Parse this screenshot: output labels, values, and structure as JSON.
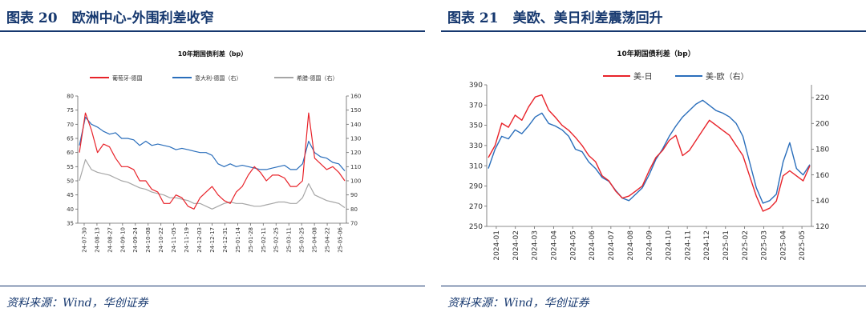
{
  "figures": [
    {
      "title_label": "图表 20",
      "title_text": "欧洲中心-外围利差收窄",
      "source": "资料来源：Wind，华创证券"
    },
    {
      "title_label": "图表 21",
      "title_text": "美欧、美日利差震荡回升",
      "source": "资料来源：Wind，华创证券"
    }
  ],
  "chart_data": [
    {
      "type": "line",
      "title": "10年期国债利差（bp）",
      "x_ticks": [
        "24-07-30",
        "24-08-13",
        "24-08-27",
        "24-09-10",
        "24-09-24",
        "24-10-08",
        "24-10-22",
        "24-11-05",
        "24-11-19",
        "24-12-03",
        "24-12-17",
        "24-12-31",
        "25-01-14",
        "25-01-28",
        "25-02-11",
        "25-02-25",
        "25-03-11",
        "25-03-25",
        "25-04-08",
        "25-04-22",
        "25-05-06"
      ],
      "y_left_ticks": [
        35,
        40,
        45,
        50,
        55,
        60,
        65,
        70,
        75,
        80
      ],
      "y_right_ticks": [
        70,
        80,
        90,
        100,
        110,
        120,
        130,
        140,
        150,
        160
      ],
      "ylim_left": [
        35,
        80
      ],
      "ylim_right": [
        70,
        160
      ],
      "legend_position": "top",
      "grid": false,
      "series": [
        {
          "name": "葡萄牙-德国",
          "axis": "left",
          "color": "#e8232a",
          "values": [
            60,
            74,
            68,
            60,
            63,
            62,
            58,
            55,
            55,
            54,
            50,
            50,
            47,
            46,
            42,
            42,
            45,
            44,
            41,
            40,
            44,
            46,
            48,
            45,
            43,
            42,
            46,
            48,
            52,
            55,
            53,
            50,
            52,
            52,
            51,
            48,
            48,
            50,
            74,
            58,
            56,
            54,
            55,
            53,
            50
          ]
        },
        {
          "name": "意大利-德国",
          "axis": "right",
          "color": "#2a6ebb",
          "values": [
            125,
            145,
            140,
            138,
            135,
            133,
            134,
            130,
            130,
            129,
            125,
            128,
            125,
            126,
            125,
            124,
            122,
            123,
            122,
            121,
            120,
            120,
            118,
            112,
            110,
            112,
            110,
            111,
            110,
            109,
            108,
            108,
            109,
            110,
            111,
            108,
            108,
            112,
            128,
            120,
            117,
            116,
            113,
            112,
            107
          ]
        },
        {
          "name": "希腊-德国",
          "axis": "right",
          "color": "#a6a6a6",
          "values": [
            100,
            115,
            108,
            106,
            105,
            104,
            102,
            100,
            99,
            97,
            95,
            94,
            92,
            91,
            90,
            88,
            88,
            87,
            86,
            84,
            84,
            82,
            80,
            82,
            84,
            85,
            84,
            84,
            83,
            82,
            82,
            83,
            84,
            85,
            85,
            84,
            84,
            88,
            98,
            90,
            88,
            86,
            85,
            84,
            81
          ]
        }
      ]
    },
    {
      "type": "line",
      "title": "10年期国债利差（bp）",
      "x_ticks": [
        "2024-01",
        "2024-02",
        "2024-03",
        "2024-04",
        "2024-05",
        "2024-06",
        "2024-07",
        "2024-08",
        "2024-09",
        "2024-10",
        "2024-11",
        "2024-12",
        "2025-01",
        "2025-02",
        "2025-03",
        "2025-04",
        "2025-05"
      ],
      "y_left_ticks": [
        250,
        270,
        290,
        310,
        330,
        350,
        370,
        390
      ],
      "y_right_ticks": [
        120,
        140,
        160,
        180,
        200,
        220
      ],
      "ylim_left": [
        250,
        390
      ],
      "ylim_right": [
        120,
        230
      ],
      "legend_position": "top",
      "grid": false,
      "series": [
        {
          "name": "美-日",
          "axis": "left",
          "color": "#e8232a",
          "values": [
            318,
            330,
            352,
            348,
            360,
            355,
            368,
            378,
            380,
            365,
            358,
            350,
            345,
            338,
            330,
            320,
            314,
            300,
            295,
            285,
            278,
            280,
            285,
            290,
            305,
            318,
            325,
            335,
            340,
            320,
            325,
            335,
            345,
            355,
            350,
            345,
            340,
            330,
            320,
            300,
            280,
            265,
            268,
            275,
            300,
            305,
            300,
            295,
            310
          ]
        },
        {
          "name": "美-欧",
          "axis": "right",
          "color": "#2a6ebb",
          "values": [
            165,
            180,
            190,
            188,
            195,
            192,
            198,
            205,
            208,
            200,
            198,
            195,
            190,
            180,
            178,
            170,
            165,
            158,
            155,
            148,
            142,
            140,
            145,
            150,
            160,
            172,
            180,
            190,
            198,
            205,
            210,
            215,
            218,
            214,
            210,
            208,
            205,
            200,
            190,
            170,
            150,
            138,
            140,
            145,
            170,
            185,
            165,
            160,
            168
          ]
        }
      ]
    }
  ]
}
